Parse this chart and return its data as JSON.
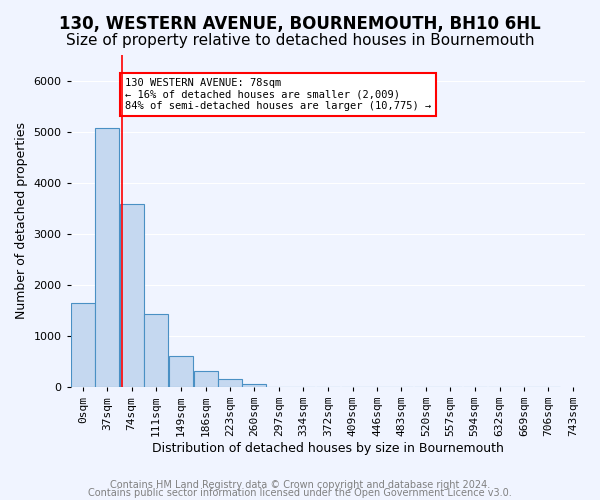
{
  "title": "130, WESTERN AVENUE, BOURNEMOUTH, BH10 6HL",
  "subtitle": "Size of property relative to detached houses in Bournemouth",
  "xlabel": "Distribution of detached houses by size in Bournemouth",
  "ylabel": "Number of detached properties",
  "footer_line1": "Contains HM Land Registry data © Crown copyright and database right 2024.",
  "footer_line2": "Contains public sector information licensed under the Open Government Licence v3.0.",
  "bin_labels": [
    "0sqm",
    "37sqm",
    "74sqm",
    "111sqm",
    "149sqm",
    "186sqm",
    "223sqm",
    "260sqm",
    "297sqm",
    "334sqm",
    "372sqm",
    "409sqm",
    "446sqm",
    "483sqm",
    "520sqm",
    "557sqm",
    "594sqm",
    "632sqm",
    "669sqm",
    "706sqm",
    "743sqm"
  ],
  "bin_edges": [
    0,
    37,
    74,
    111,
    149,
    186,
    223,
    260,
    297,
    334,
    372,
    409,
    446,
    483,
    520,
    557,
    594,
    632,
    669,
    706,
    743
  ],
  "bar_heights": [
    1650,
    5075,
    3575,
    1425,
    610,
    305,
    155,
    60,
    0,
    0,
    0,
    0,
    0,
    0,
    0,
    0,
    0,
    0,
    0,
    0
  ],
  "bar_color": "#c5d8f0",
  "bar_edge_color": "#4a90c4",
  "property_size": 78,
  "property_line_x": 78,
  "annotation_title": "130 WESTERN AVENUE: 78sqm",
  "annotation_line1": "← 16% of detached houses are smaller (2,009)",
  "annotation_line2": "84% of semi-detached houses are larger (10,775) →",
  "annotation_box_color": "white",
  "annotation_box_edge_color": "red",
  "vline_color": "red",
  "ylim": [
    0,
    6500
  ],
  "xlim_min": 0,
  "xlim_max": 743,
  "bg_color": "#f0f4ff",
  "plot_bg_color": "#f0f4ff",
  "grid_color": "white",
  "title_fontsize": 12,
  "subtitle_fontsize": 11,
  "axis_label_fontsize": 9,
  "tick_fontsize": 8,
  "footer_fontsize": 7
}
